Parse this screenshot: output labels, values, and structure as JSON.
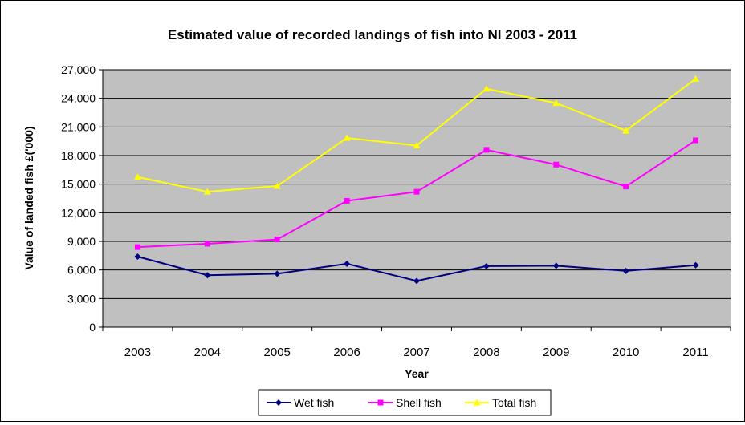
{
  "chart_data": {
    "type": "line",
    "title": "Estimated value of recorded landings of fish into NI 2003 - 2011",
    "xlabel": "Year",
    "ylabel": "Value of landed fish  £('000)",
    "categories": [
      "2003",
      "2004",
      "2005",
      "2006",
      "2007",
      "2008",
      "2009",
      "2010",
      "2011"
    ],
    "ylim": [
      0,
      27000
    ],
    "yticks": [
      0,
      3000,
      6000,
      9000,
      12000,
      15000,
      18000,
      21000,
      24000,
      27000
    ],
    "ytick_labels": [
      "0",
      "3,000",
      "6,000",
      "9,000",
      "12,000",
      "15,000",
      "18,000",
      "21,000",
      "24,000",
      "27,000"
    ],
    "grid": true,
    "plot_background": "#C0C0C0",
    "legend_position": "bottom",
    "series": [
      {
        "name": "Wet fish",
        "color": "#000080",
        "marker": "diamond",
        "values": [
          7400,
          5450,
          5600,
          6650,
          4850,
          6400,
          6450,
          5900,
          6500
        ]
      },
      {
        "name": "Shell fish",
        "color": "#FF00FF",
        "marker": "square",
        "values": [
          8400,
          8750,
          9200,
          13250,
          14200,
          18600,
          17050,
          14750,
          19600
        ]
      },
      {
        "name": "Total fish",
        "color": "#FFFF00",
        "marker": "triangle",
        "values": [
          15750,
          14200,
          14800,
          19850,
          19050,
          25000,
          23500,
          20600,
          26050
        ]
      }
    ]
  }
}
